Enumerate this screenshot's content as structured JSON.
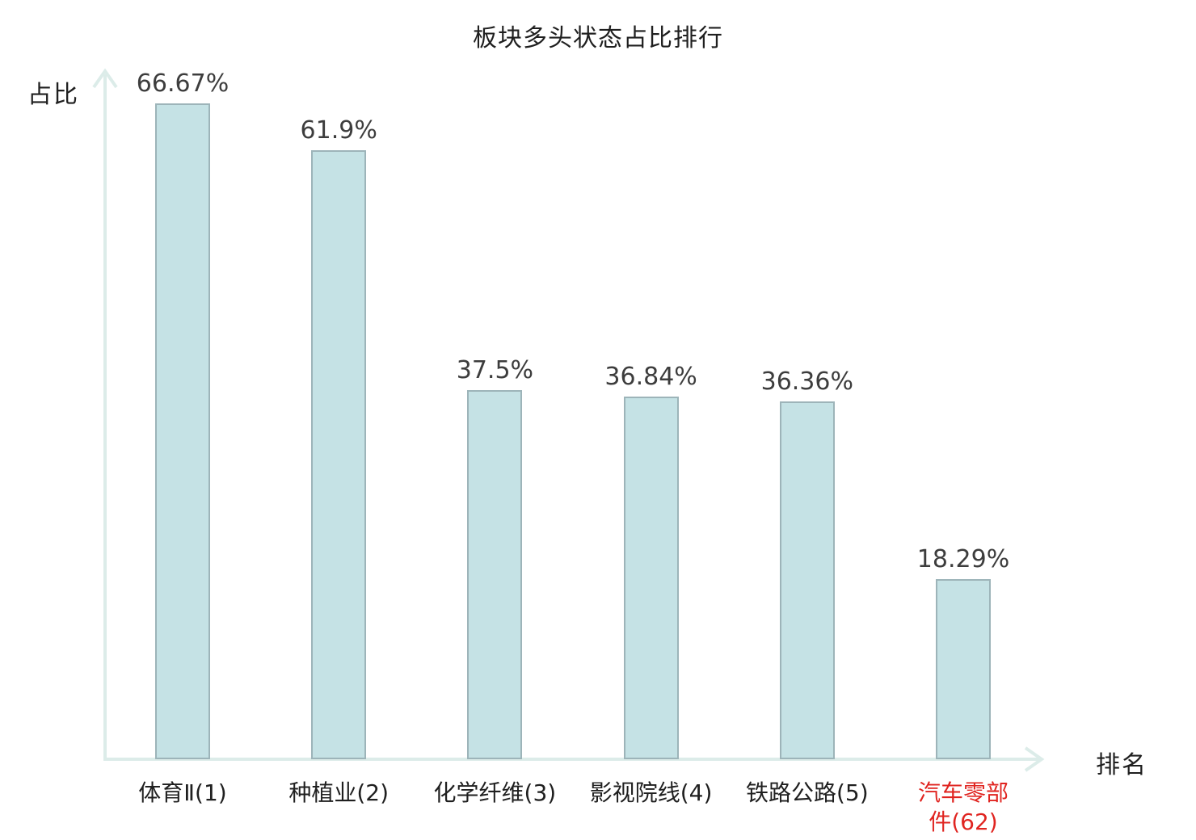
{
  "page": {
    "background": "#ffffff"
  },
  "chart_data": {
    "type": "bar",
    "title": "板块多头状态占比排行",
    "ylabel": "占比",
    "xlabel": "排名",
    "categories": [
      "体育Ⅱ(1)",
      "种植业(2)",
      "化学纤维(3)",
      "影视院线(4)",
      "铁路公路(5)",
      "汽车零部件(62)"
    ],
    "categories_display": [
      [
        "体育Ⅱ(1)"
      ],
      [
        "种植业(2)"
      ],
      [
        "化学纤维(3)"
      ],
      [
        "影视院线(4)"
      ],
      [
        "铁路公路(5)"
      ],
      [
        "汽车零部",
        "件(62)"
      ]
    ],
    "values": [
      66.67,
      61.9,
      37.5,
      36.84,
      36.36,
      18.29
    ],
    "value_labels": [
      "66.67%",
      "61.9%",
      "37.5%",
      "36.84%",
      "36.36%",
      "18.29%"
    ],
    "ranks": [
      1,
      2,
      3,
      4,
      5,
      62
    ],
    "highlight_index": 5,
    "ylim": [
      0,
      70
    ],
    "grid": false,
    "legend": null,
    "colors": {
      "bar_fill": "#c5e2e5",
      "bar_border": "#9db4b9",
      "axis": "#dcece9",
      "title_text": "#1f1f1f",
      "value_text": "#3d3d3d",
      "tick_text": "#1f1f1f",
      "highlight_text": "#e02420"
    }
  }
}
